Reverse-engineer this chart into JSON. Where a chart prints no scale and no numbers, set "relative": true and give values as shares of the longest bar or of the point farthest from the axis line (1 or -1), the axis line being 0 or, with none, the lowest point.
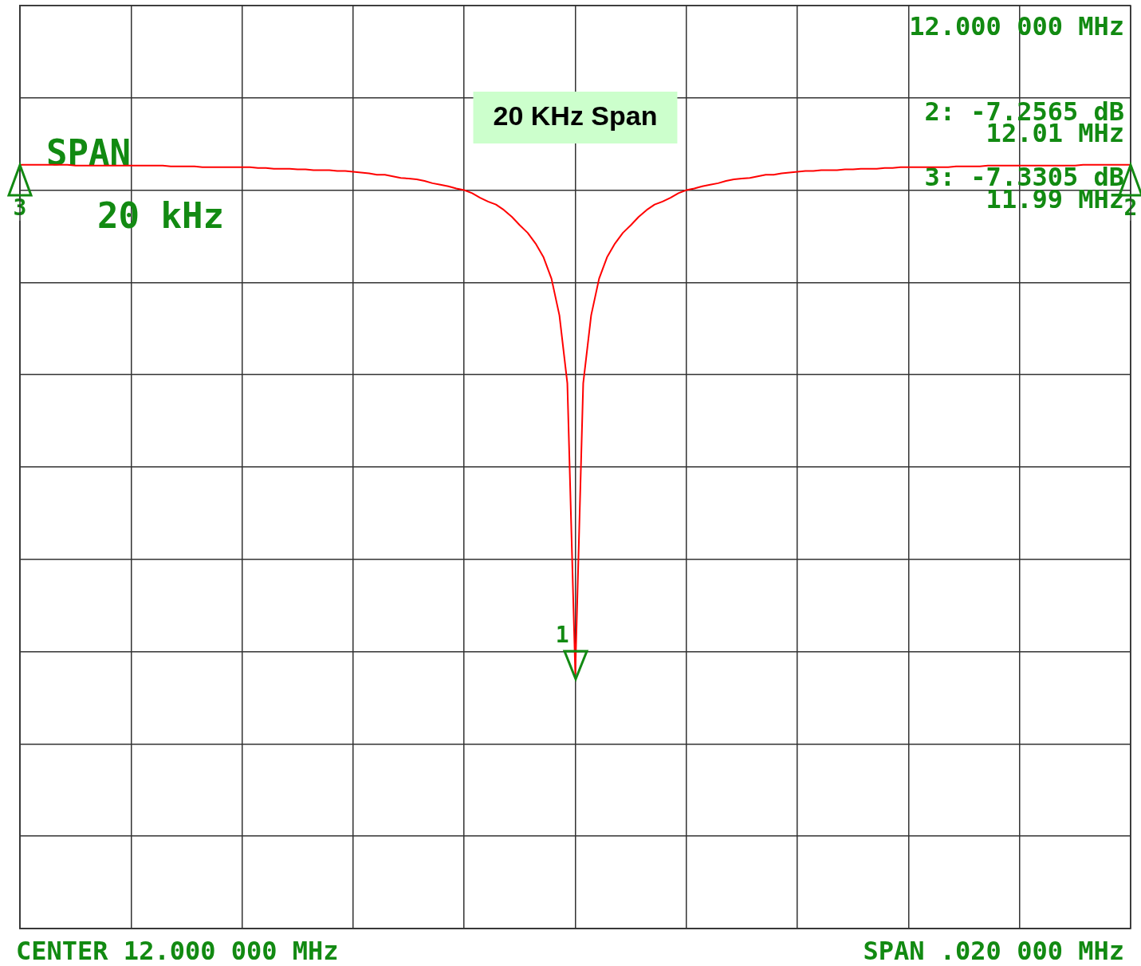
{
  "chart_data": {
    "type": "line",
    "title": "20 KHz Span",
    "relative": true,
    "grid": true,
    "marker": "none",
    "line_style": "solid",
    "categories": [
      null,
      null,
      null,
      null,
      null,
      null,
      null,
      null,
      null,
      null,
      null,
      null,
      null,
      null,
      null,
      null,
      null,
      null,
      null,
      null,
      null,
      null,
      null,
      null,
      null,
      null,
      null,
      null,
      null,
      null,
      null,
      null,
      null,
      null,
      null,
      null,
      null,
      null,
      null,
      null,
      null,
      null,
      null,
      null,
      null,
      null,
      null,
      null,
      null,
      null,
      null,
      null,
      null,
      null,
      null,
      null,
      null,
      null,
      null,
      null,
      null,
      null,
      null,
      null,
      null,
      null,
      null,
      null,
      null,
      null,
      null,
      null,
      null,
      null,
      null,
      null,
      null,
      null,
      null,
      null,
      null,
      null,
      null,
      null,
      null,
      null,
      null,
      null,
      null,
      null,
      null,
      null,
      null,
      null,
      null,
      null,
      null,
      null,
      null,
      null,
      null,
      null,
      null,
      null,
      null,
      null,
      null,
      null,
      null,
      null,
      null,
      null,
      null,
      null,
      null,
      null,
      null,
      null,
      null,
      null,
      null,
      null,
      null,
      null,
      null,
      null,
      null,
      null,
      null,
      null,
      null,
      null,
      null,
      null,
      null,
      null,
      null,
      null,
      null,
      null,
      null
    ],
    "series": [
      {
        "color": "#ff0000",
        "values": [
          1.0,
          1.0,
          1.0,
          1.0,
          1.0,
          1.0,
          1.0,
          0.999,
          0.999,
          0.999,
          0.999,
          0.999,
          0.999,
          0.999,
          0.999,
          0.999,
          0.999,
          0.999,
          0.999,
          0.998,
          0.998,
          0.998,
          0.998,
          0.997,
          0.997,
          0.997,
          0.997,
          0.997,
          0.997,
          0.997,
          0.996,
          0.996,
          0.995,
          0.995,
          0.995,
          0.994,
          0.994,
          0.993,
          0.993,
          0.993,
          0.992,
          0.992,
          0.991,
          0.99,
          0.989,
          0.987,
          0.987,
          0.985,
          0.983,
          0.982,
          0.981,
          0.979,
          0.976,
          0.974,
          0.972,
          0.969,
          0.967,
          0.963,
          0.957,
          0.952,
          0.948,
          0.941,
          0.932,
          0.921,
          0.911,
          0.897,
          0.879,
          0.851,
          0.803,
          0.714,
          0.334,
          0.714,
          0.803,
          0.851,
          0.879,
          0.897,
          0.911,
          0.921,
          0.932,
          0.941,
          0.948,
          0.952,
          0.957,
          0.963,
          0.967,
          0.969,
          0.972,
          0.974,
          0.976,
          0.979,
          0.981,
          0.982,
          0.983,
          0.985,
          0.987,
          0.987,
          0.989,
          0.99,
          0.991,
          0.992,
          0.992,
          0.993,
          0.993,
          0.993,
          0.994,
          0.994,
          0.995,
          0.995,
          0.995,
          0.996,
          0.996,
          0.997,
          0.997,
          0.997,
          0.997,
          0.997,
          0.997,
          0.997,
          0.998,
          0.998,
          0.998,
          0.998,
          0.999,
          0.999,
          0.999,
          0.999,
          0.999,
          0.999,
          0.999,
          0.999,
          0.999,
          0.999,
          0.999,
          0.999,
          1.0,
          1.0,
          1.0,
          1.0,
          1.0,
          1.0,
          1.0
        ]
      }
    ],
    "annotations": [
      "12.000 000 MHz",
      "2: -7.2565 dB",
      "12.01 MHz",
      "3: -7.3305 dB",
      "11.99 MHz",
      "SPAN",
      "20 kHz",
      "CENTER 12.000 000 MHz",
      "SPAN .020 000 MHz",
      "1",
      "2",
      "3"
    ]
  }
}
